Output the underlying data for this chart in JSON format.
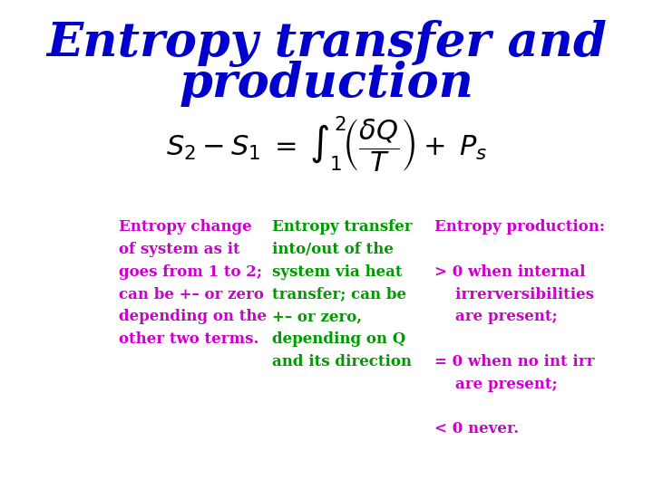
{
  "title_line1": "Entropy transfer and",
  "title_line2": "production",
  "title_color": "#0000CC",
  "title_fontsize": 38,
  "bg_color": "#FFFFFF",
  "equation": "S_2 - S_1 \\; = \\; \\int_{1}^{2}\\!\\left(\\frac{\\delta Q}{T}\\right) + \\; P_s",
  "eq_fontsize": 22,
  "col1_color": "#CC00CC",
  "col2_color": "#009900",
  "col3_color": "#CC00CC",
  "col1_text": "Entropy change\nof system as it\ngoes from 1 to 2;\ncan be +– or zero\ndepending on the\nother two terms.",
  "col2_text": "Entropy transfer\ninto/out of the\nsystem via heat\ntransfer; can be\n+– or zero,\ndepending on Q\nand its direction",
  "col3_text": "Entropy production:\n\n> 0 when internal\n    irrerversibilities\n    are present;\n\n= 0 when no int irr\n    are present;\n\n< 0 never.",
  "text_fontsize": 12
}
